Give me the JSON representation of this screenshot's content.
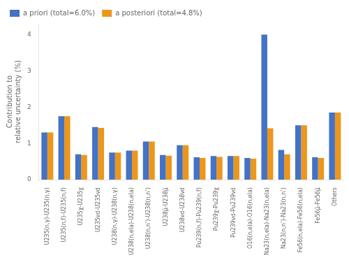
{
  "chart_data": {
    "type": "bar",
    "categories": [
      "U235(n,γ)-U235(n,γ)",
      "U235(n,f)-U235(n,f)",
      "U235χ-U235χ",
      "U235νd-U235νd",
      "U238(n,γ)-U238(n,γ)",
      "U238(n,ela)-U238(n,ela)",
      "U238(n,n’)-U238(n,n’)",
      "U238μ̄-U238μ̄",
      "U238νd-U238νd",
      "Pu239(n,f)-Pu239(n,f)",
      "Pu239χ-Pu239χ",
      "Pu239νd-Pu239νd",
      "O16(n,ela)-O16(n,ela)",
      "Na23(n,ela)-Na23(n,ela)",
      "Na23(n,n’)-Na23(n,n’)",
      "Fe56(n,ela)-Fe56(n,ela)",
      "Fe56μ̄-Fe56μ̄",
      "Others"
    ],
    "series": [
      {
        "name": "a priori (total=6.0%)",
        "color": "#4472c4",
        "values": [
          1.3,
          1.75,
          0.7,
          1.45,
          0.75,
          0.8,
          1.05,
          0.68,
          0.95,
          0.62,
          0.65,
          0.65,
          0.6,
          4.0,
          0.82,
          1.5,
          0.62,
          1.85
        ]
      },
      {
        "name": "a posteriori (total=4.8%)",
        "color": "#ed961c",
        "values": [
          1.3,
          1.75,
          0.68,
          1.43,
          0.75,
          0.8,
          1.05,
          0.66,
          0.95,
          0.6,
          0.63,
          0.65,
          0.58,
          1.42,
          0.7,
          1.5,
          0.6,
          1.85
        ]
      }
    ],
    "ylabel": "Contribution to\nrelative uncertainty (%)",
    "ylim": [
      0,
      4.3
    ],
    "yticks": [
      0,
      1,
      2,
      3,
      4
    ],
    "legend": "upper left",
    "grid": false
  }
}
